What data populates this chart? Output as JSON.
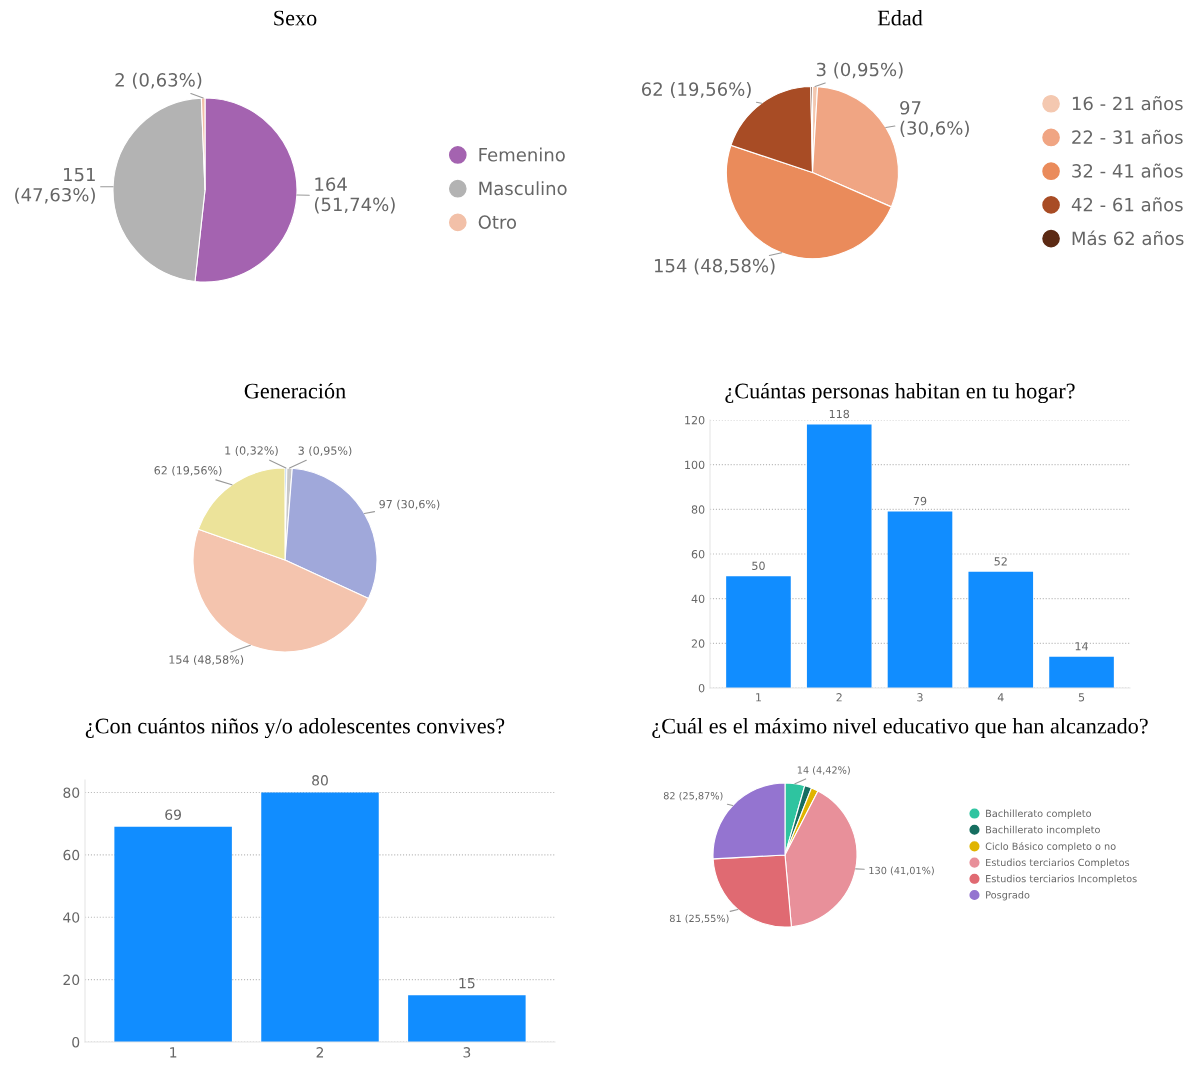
{
  "chart_data": [
    {
      "type": "pie",
      "title": "Sexo",
      "categories": [
        "Femenino",
        "Masculino",
        "Otro"
      ],
      "values": [
        164,
        151,
        2
      ],
      "colors": [
        "#a463b0",
        "#b3b3b3",
        "#f2c0a8"
      ],
      "value_labels": [
        "164\n(51,74%)",
        "151\n(47,63%)",
        "2 (0,63%)"
      ],
      "legend": "right"
    },
    {
      "type": "pie",
      "title": "Edad",
      "categories": [
        "16 - 21 años",
        "22 - 31 años",
        "32 - 41 años",
        "42 - 61 años",
        "Más 62 años"
      ],
      "values": [
        3,
        97,
        154,
        62,
        1
      ],
      "colors": [
        "#f4c8b0",
        "#f0a583",
        "#ea8b5b",
        "#a84c25",
        "#5c2a14"
      ],
      "value_labels": [
        "3 (0,95%)",
        "97\n(30,6%)",
        "154 (48,58%)",
        "62 (19,56%)",
        null
      ],
      "legend": "right"
    },
    {
      "type": "pie",
      "title": "Generación",
      "categories": [
        null,
        null,
        null,
        null,
        null
      ],
      "values": [
        1,
        3,
        97,
        154,
        62
      ],
      "colors": [
        "#1a6fd0",
        "#c8c8c8",
        "#a0a8da",
        "#f4c4ae",
        "#ece39a"
      ],
      "value_labels": [
        "1 (0,32%)",
        "3 (0,95%)",
        "97 (30,6%)",
        "154 (48,58%)",
        "62 (19,56%)"
      ]
    },
    {
      "type": "bar",
      "title": "¿Cuántas personas habitan en tu hogar?",
      "categories": [
        "1",
        "2",
        "3",
        "4",
        "5"
      ],
      "values": [
        50,
        118,
        79,
        52,
        14
      ],
      "color": "#118dff",
      "ylim": [
        0,
        120
      ],
      "yticks": [
        0,
        20,
        40,
        60,
        80,
        100,
        120
      ],
      "grid": "y",
      "data_labels": true
    },
    {
      "type": "bar",
      "title": "¿Con cuántos niños y/o adolescentes convives?",
      "categories": [
        "1",
        "2",
        "3"
      ],
      "values": [
        69,
        80,
        15
      ],
      "color": "#118dff",
      "ylim": [
        0,
        84
      ],
      "yticks": [
        0,
        20,
        40,
        60,
        80
      ],
      "grid": "y",
      "data_labels": true
    },
    {
      "type": "pie",
      "title": "¿Cuál es el máximo nivel educativo que han alcanzado?",
      "categories": [
        "Bachillerato completo",
        "Bachillerato incompleto",
        "Ciclo Básico completo o no",
        "Estudios terciarios Completos",
        "Estudios terciarios Incompletos",
        "Posgrado"
      ],
      "values": [
        14,
        5,
        5,
        130,
        81,
        82
      ],
      "colors": [
        "#2ec4a0",
        "#166e60",
        "#e0b400",
        "#e8909a",
        "#e06a72",
        "#9474d0"
      ],
      "value_labels": [
        "14 (4,42%)",
        null,
        null,
        "130 (41,01%)",
        "81 (25,55%)",
        "82 (25,87%)"
      ],
      "legend": "right"
    }
  ]
}
